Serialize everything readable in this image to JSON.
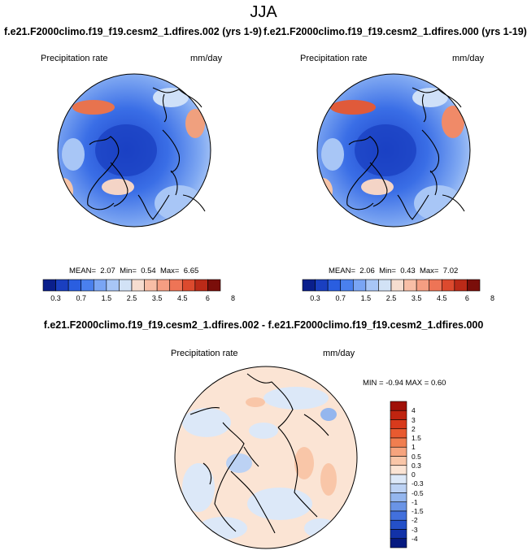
{
  "header": {
    "season": "JJA",
    "left_run": "f.e21.F2000climo.f19_f19.cesm2_1.dfires.002 (yrs 1-9)",
    "right_run": "f.e21.F2000climo.f19_f19.cesm2_1.dfires.000 (yrs 1-19)"
  },
  "panels": [
    {
      "variable": "Precipitation rate",
      "units": "mm/day",
      "stats": {
        "mean_label": "MEAN=",
        "mean": "2.07",
        "min_label": "Min=",
        "min": "0.54",
        "max_label": "Max=",
        "max": "6.65"
      }
    },
    {
      "variable": "Precipitation rate",
      "units": "mm/day",
      "stats": {
        "mean_label": "MEAN=",
        "mean": "2.06",
        "min_label": "Min=",
        "min": "0.43",
        "max_label": "Max=",
        "max": "7.02"
      }
    }
  ],
  "abs_colorbar": {
    "colors": [
      "#0a1f8c",
      "#1a3fc0",
      "#2a5ee0",
      "#4a80ee",
      "#7aa5f4",
      "#a8c6f6",
      "#d2e2f6",
      "#f6ddd0",
      "#f8bea6",
      "#f59e82",
      "#ee7456",
      "#dc4a2e",
      "#bb2a18",
      "#7a0e0a"
    ],
    "ticks": [
      "0.3",
      "0.7",
      "1.5",
      "2.5",
      "3.5",
      "4.5",
      "6",
      "8"
    ]
  },
  "difference": {
    "title": "f.e21.F2000climo.f19_f19.cesm2_1.dfires.002 - f.e21.F2000climo.f19_f19.cesm2_1.dfires.000",
    "variable": "Precipitation rate",
    "units": "mm/day",
    "minmax": "MIN = -0.94 MAX =  0.60",
    "colorbar": {
      "colors": [
        "#a01008",
        "#c02410",
        "#d83a1c",
        "#e85a30",
        "#f07e50",
        "#f6a47e",
        "#f9c6a8",
        "#fbe4d4",
        "#dce8f8",
        "#bcd2f4",
        "#94b6ee",
        "#6a94e6",
        "#4270dc",
        "#2450c8",
        "#1232a8",
        "#061a80"
      ],
      "labels": [
        "4",
        "3",
        "2",
        "1.5",
        "1",
        "0.5",
        "0.3",
        "0",
        "-0.3",
        "-0.5",
        "-1",
        "-1.5",
        "-2",
        "-3",
        "-4"
      ]
    }
  }
}
